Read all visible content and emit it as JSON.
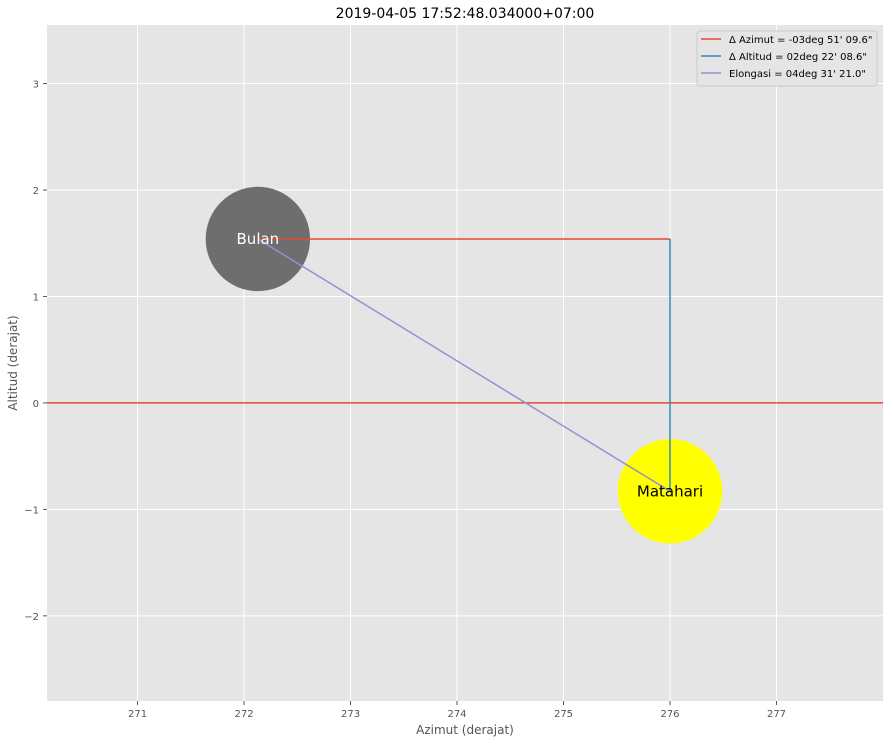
{
  "chart_data": {
    "type": "scatter",
    "title": "2019-04-05 17:52:48.034000+07:00",
    "xlabel": "Azimut (derajat)",
    "ylabel": "Altitud (derajat)",
    "xlim": [
      270.15,
      278.0
    ],
    "ylim": [
      -2.8,
      3.55
    ],
    "xticks": [
      271,
      272,
      273,
      274,
      275,
      276,
      277
    ],
    "xtick_labels": [
      "271",
      "272",
      "273",
      "274",
      "275",
      "276",
      "277"
    ],
    "yticks": [
      -2,
      -1,
      0,
      1,
      2,
      3
    ],
    "ytick_labels": [
      "−2",
      "−1",
      "0",
      "1",
      "2",
      "3"
    ],
    "grid": true,
    "legend_position": "top-right",
    "bodies": [
      {
        "name": "Bulan",
        "x": 272.13,
        "y": 1.54,
        "radius_deg": 0.49,
        "color": "#6e6e6e",
        "label_color": "#ffffff"
      },
      {
        "name": "Matahari",
        "x": 276.0,
        "y": -0.83,
        "radius_deg": 0.49,
        "color": "#ffff00",
        "label_color": "#000000"
      }
    ],
    "horizon": {
      "y": 0,
      "color": "#e24a33"
    },
    "series": [
      {
        "name": "Δ Azimut = -03deg 51' 09.6\"",
        "color": "#e24a33",
        "x": [
          272.13,
          276.0
        ],
        "y": [
          1.54,
          1.54
        ]
      },
      {
        "name": "Δ Altitud = 02deg 22' 08.6\"",
        "color": "#348abd",
        "x": [
          276.0,
          276.0
        ],
        "y": [
          1.54,
          -0.83
        ]
      },
      {
        "name": "Elongasi = 04deg 31' 21.0\"",
        "color": "#988ed5",
        "x": [
          272.13,
          276.0
        ],
        "y": [
          1.54,
          -0.83
        ]
      }
    ]
  }
}
